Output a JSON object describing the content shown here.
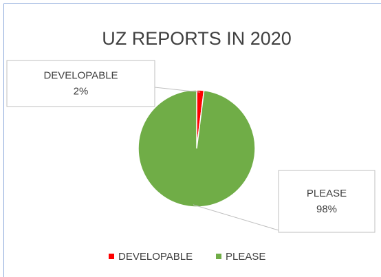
{
  "chart_data": {
    "type": "pie",
    "title": "UZ REPORTS IN 2020",
    "categories": [
      "DEVELOPABLE",
      "PLEASE"
    ],
    "values": [
      2,
      98
    ],
    "value_labels": [
      "2%",
      "98%"
    ],
    "colors": [
      "#ff0000",
      "#70ad47"
    ],
    "legend": "bottom"
  }
}
